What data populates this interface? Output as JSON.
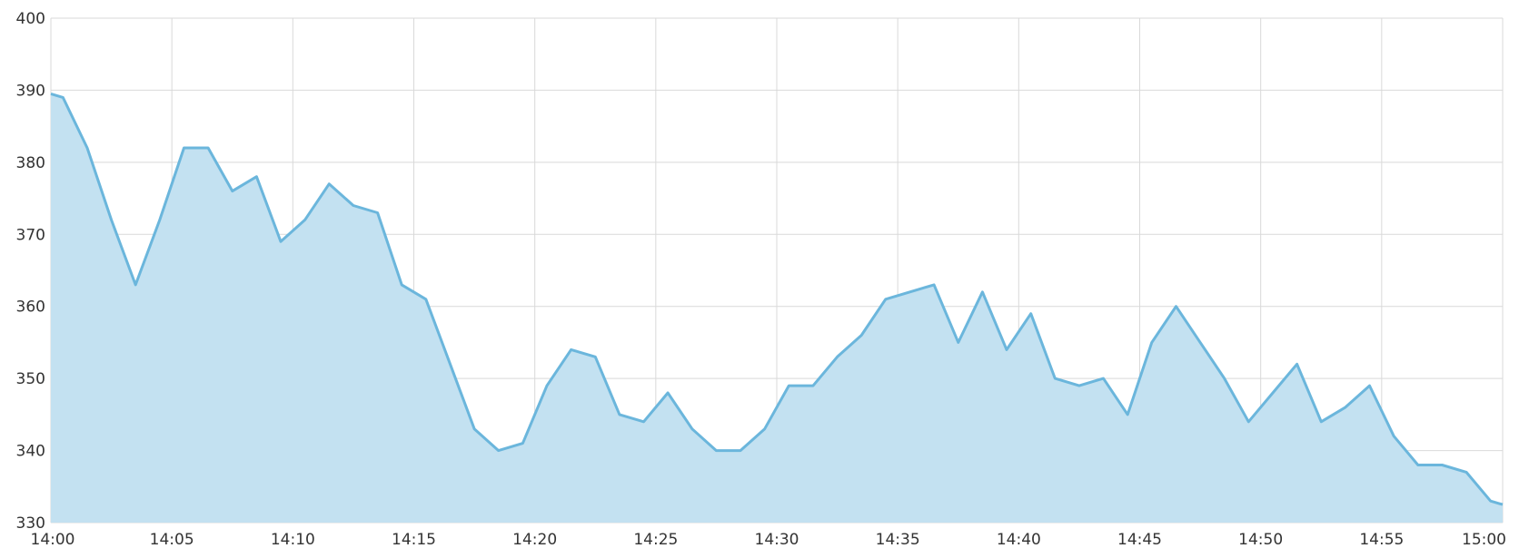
{
  "chart_data": {
    "type": "area",
    "title": "",
    "xlabel": "",
    "ylabel": "",
    "xlim": [
      "14:00",
      "15:00"
    ],
    "ylim": [
      330,
      400
    ],
    "grid": true,
    "x_ticks": [
      "14:00",
      "14:05",
      "14:10",
      "14:15",
      "14:20",
      "14:25",
      "14:30",
      "14:35",
      "14:40",
      "14:45",
      "14:50",
      "14:55",
      "15:00"
    ],
    "y_ticks": [
      330,
      340,
      350,
      360,
      370,
      380,
      390,
      400
    ],
    "colors": {
      "line": "#6bb6dc",
      "fill": "#c3e1f1",
      "grid": "#d9d9d9",
      "text": "#333333"
    },
    "series": [
      {
        "x": [
          "14:00",
          "14:00:30",
          "14:01:30",
          "14:02:30",
          "14:03:30",
          "14:04:30",
          "14:05:30",
          "14:06:30",
          "14:07:30",
          "14:08:30",
          "14:09:30",
          "14:10:30",
          "14:11:30",
          "14:12:30",
          "14:13:30",
          "14:14:30",
          "14:15:30",
          "14:16:30",
          "14:17:30",
          "14:18:30",
          "14:19:30",
          "14:20:30",
          "14:21:30",
          "14:22:30",
          "14:23:30",
          "14:24:30",
          "14:25:30",
          "14:26:30",
          "14:27:30",
          "14:28:30",
          "14:29:30",
          "14:30:30",
          "14:31:30",
          "14:32:30",
          "14:33:30",
          "14:34:30",
          "14:35:30",
          "14:36:30",
          "14:37:30",
          "14:38:30",
          "14:39:30",
          "14:40:30",
          "14:41:30",
          "14:42:30",
          "14:43:30",
          "14:44:30",
          "14:45:30",
          "14:46:30",
          "14:47:30",
          "14:48:30",
          "14:49:30",
          "14:50:30",
          "14:51:30",
          "14:52:30",
          "14:53:30",
          "14:54:30",
          "14:55:30",
          "14:56:30",
          "14:57:30",
          "14:58:30",
          "14:59:30",
          "15:00"
        ],
        "values": [
          389.5,
          389,
          382,
          372,
          363,
          372,
          382,
          382,
          376,
          378,
          369,
          372,
          377,
          374,
          373,
          363,
          361,
          352,
          343,
          340,
          341,
          349,
          354,
          353,
          345,
          344,
          348,
          343,
          340,
          340,
          343,
          349,
          349,
          353,
          356,
          361,
          362,
          363,
          355,
          362,
          354,
          359,
          350,
          349,
          350,
          345,
          355,
          360,
          355,
          350,
          344,
          348,
          352,
          344,
          346,
          349,
          342,
          338,
          338,
          337,
          333,
          332.5
        ]
      }
    ]
  }
}
